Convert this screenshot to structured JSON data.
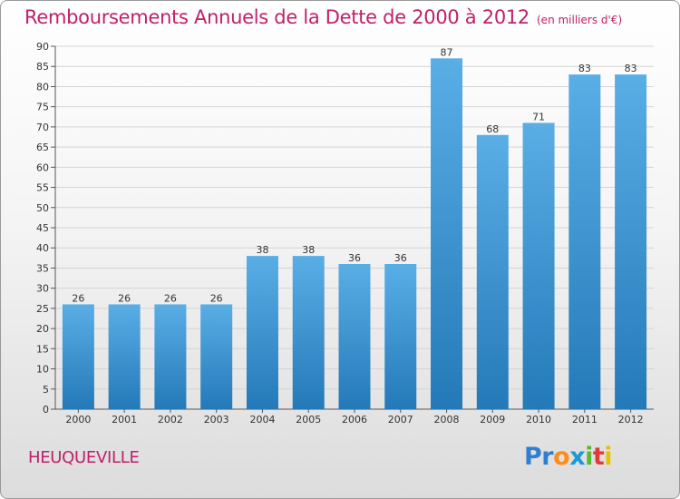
{
  "title": "Remboursements Annuels de la Dette de 2000 à 2012",
  "unit": "(en milliers d'€)",
  "commune": "HEUQUEVILLE",
  "logo": {
    "text": "Proxiti",
    "letter_colors": [
      "#2e7fd0",
      "#2e7fd0",
      "#ff8c1a",
      "#1a9ad6",
      "#5ab82e",
      "#e23a3a",
      "#e8c200"
    ]
  },
  "colors": {
    "bar_top": "#5aaee6",
    "bar_bottom": "#2479b8",
    "title": "#c0206a",
    "axis": "#555555",
    "grid": "#d4d4d4"
  },
  "chart_data": {
    "type": "bar",
    "categories": [
      "2000",
      "2001",
      "2002",
      "2003",
      "2004",
      "2005",
      "2006",
      "2007",
      "2008",
      "2009",
      "2010",
      "2011",
      "2012"
    ],
    "values": [
      26,
      26,
      26,
      26,
      38,
      38,
      36,
      36,
      87,
      68,
      71,
      83,
      83
    ],
    "ylim": [
      0,
      90
    ],
    "ytick_step": 5,
    "grid": true,
    "data_labels": true
  }
}
